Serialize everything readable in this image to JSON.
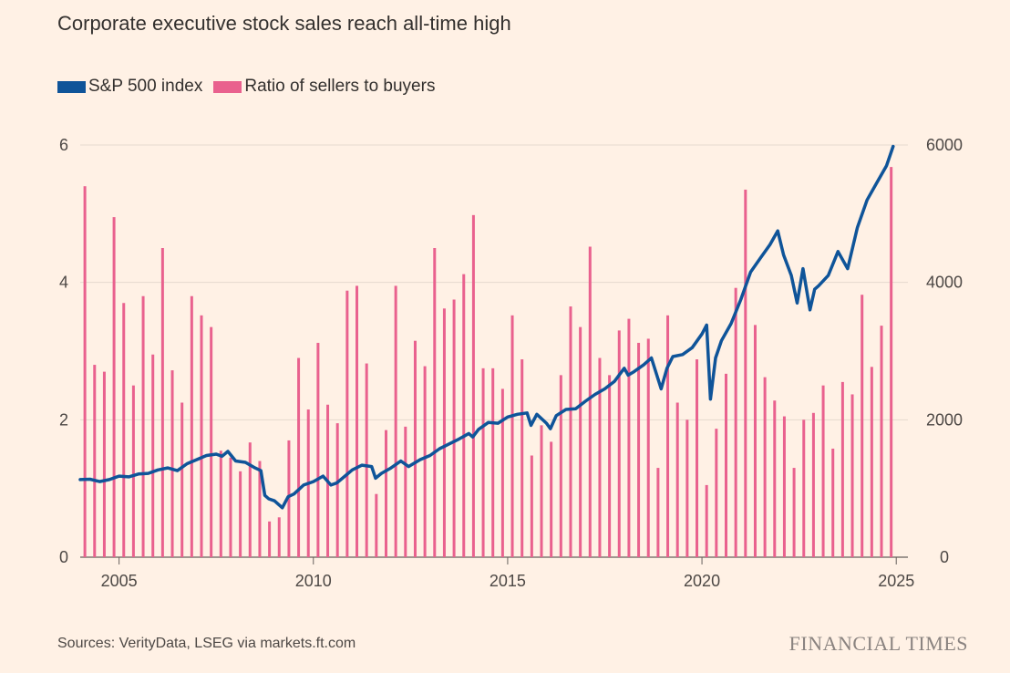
{
  "title": "Corporate executive stock sales reach all-time high",
  "legend": [
    {
      "label": "S&P 500 index",
      "color": "#0F5499"
    },
    {
      "label": "Ratio of sellers to buyers",
      "color": "#E9618E"
    }
  ],
  "source": "Sources: VerityData, LSEG via markets.ft.com",
  "brand": "FINANCIAL TIMES",
  "chart_data": {
    "type": "bar+line",
    "title": "Corporate executive stock sales reach all-time high",
    "x_ticks": [
      "2005",
      "2010",
      "2015",
      "2020",
      "2025"
    ],
    "x_tick_values": [
      2005,
      2010,
      2015,
      2020,
      2025
    ],
    "xlim": [
      2004.0,
      2025.3
    ],
    "y_left": {
      "ticks": [
        "0",
        "2",
        "4",
        "6"
      ],
      "tick_values": [
        0,
        2,
        4,
        6
      ],
      "lim": [
        0,
        6
      ]
    },
    "y_right": {
      "ticks": [
        "0",
        "2000",
        "4000",
        "6000"
      ],
      "tick_values": [
        0,
        2000,
        4000,
        6000
      ],
      "lim": [
        0,
        6000
      ]
    },
    "grid": "horizontal",
    "legend_position": "top-left",
    "series": [
      {
        "name": "Ratio of sellers to buyers",
        "kind": "bar",
        "axis": "left",
        "color": "#E9618E",
        "points": [
          [
            2004.12,
            5.4
          ],
          [
            2004.37,
            2.8
          ],
          [
            2004.62,
            2.7
          ],
          [
            2004.87,
            4.95
          ],
          [
            2005.12,
            3.7
          ],
          [
            2005.37,
            2.5
          ],
          [
            2005.62,
            3.8
          ],
          [
            2005.87,
            2.95
          ],
          [
            2006.12,
            4.5
          ],
          [
            2006.37,
            2.72
          ],
          [
            2006.62,
            2.25
          ],
          [
            2006.87,
            3.8
          ],
          [
            2007.12,
            3.52
          ],
          [
            2007.37,
            3.35
          ],
          [
            2007.62,
            1.55
          ],
          [
            2007.87,
            1.45
          ],
          [
            2008.12,
            1.25
          ],
          [
            2008.37,
            1.67
          ],
          [
            2008.62,
            1.4
          ],
          [
            2008.87,
            0.52
          ],
          [
            2009.12,
            0.58
          ],
          [
            2009.37,
            1.7
          ],
          [
            2009.62,
            2.9
          ],
          [
            2009.87,
            2.15
          ],
          [
            2010.12,
            3.12
          ],
          [
            2010.37,
            2.22
          ],
          [
            2010.62,
            1.95
          ],
          [
            2010.87,
            3.88
          ],
          [
            2011.12,
            3.95
          ],
          [
            2011.37,
            2.82
          ],
          [
            2011.62,
            0.92
          ],
          [
            2011.87,
            1.85
          ],
          [
            2012.12,
            3.95
          ],
          [
            2012.37,
            1.9
          ],
          [
            2012.62,
            3.15
          ],
          [
            2012.87,
            2.78
          ],
          [
            2013.12,
            4.5
          ],
          [
            2013.37,
            3.62
          ],
          [
            2013.62,
            3.75
          ],
          [
            2013.87,
            4.12
          ],
          [
            2014.12,
            4.98
          ],
          [
            2014.37,
            2.75
          ],
          [
            2014.62,
            2.75
          ],
          [
            2014.87,
            2.45
          ],
          [
            2015.12,
            3.52
          ],
          [
            2015.37,
            2.88
          ],
          [
            2015.62,
            1.48
          ],
          [
            2015.87,
            1.92
          ],
          [
            2016.12,
            1.68
          ],
          [
            2016.37,
            2.65
          ],
          [
            2016.62,
            3.65
          ],
          [
            2016.87,
            3.35
          ],
          [
            2017.12,
            4.52
          ],
          [
            2017.37,
            2.9
          ],
          [
            2017.62,
            2.65
          ],
          [
            2017.87,
            3.3
          ],
          [
            2018.12,
            3.47
          ],
          [
            2018.37,
            3.12
          ],
          [
            2018.62,
            3.18
          ],
          [
            2018.87,
            1.3
          ],
          [
            2019.12,
            3.52
          ],
          [
            2019.37,
            2.25
          ],
          [
            2019.62,
            2.0
          ],
          [
            2019.87,
            2.88
          ],
          [
            2020.12,
            1.05
          ],
          [
            2020.37,
            1.87
          ],
          [
            2020.62,
            2.67
          ],
          [
            2020.87,
            3.92
          ],
          [
            2021.12,
            5.35
          ],
          [
            2021.37,
            3.38
          ],
          [
            2021.62,
            2.62
          ],
          [
            2021.87,
            2.28
          ],
          [
            2022.12,
            2.05
          ],
          [
            2022.37,
            1.3
          ],
          [
            2022.62,
            2.0
          ],
          [
            2022.87,
            2.1
          ],
          [
            2023.12,
            2.5
          ],
          [
            2023.37,
            1.58
          ],
          [
            2023.62,
            2.55
          ],
          [
            2023.87,
            2.37
          ],
          [
            2024.12,
            3.82
          ],
          [
            2024.37,
            2.77
          ],
          [
            2024.62,
            3.37
          ],
          [
            2024.87,
            5.68
          ]
        ]
      },
      {
        "name": "S&P 500 index",
        "kind": "line",
        "axis": "right",
        "color": "#0F5499",
        "points": [
          [
            2004.0,
            1130
          ],
          [
            2004.25,
            1135
          ],
          [
            2004.5,
            1100
          ],
          [
            2004.75,
            1130
          ],
          [
            2005.0,
            1180
          ],
          [
            2005.25,
            1170
          ],
          [
            2005.5,
            1210
          ],
          [
            2005.75,
            1220
          ],
          [
            2006.0,
            1270
          ],
          [
            2006.25,
            1300
          ],
          [
            2006.5,
            1260
          ],
          [
            2006.75,
            1360
          ],
          [
            2007.0,
            1420
          ],
          [
            2007.25,
            1480
          ],
          [
            2007.5,
            1500
          ],
          [
            2007.65,
            1470
          ],
          [
            2007.8,
            1540
          ],
          [
            2008.0,
            1400
          ],
          [
            2008.25,
            1380
          ],
          [
            2008.5,
            1300
          ],
          [
            2008.65,
            1260
          ],
          [
            2008.75,
            900
          ],
          [
            2008.85,
            850
          ],
          [
            2009.0,
            820
          ],
          [
            2009.2,
            720
          ],
          [
            2009.35,
            880
          ],
          [
            2009.5,
            920
          ],
          [
            2009.75,
            1050
          ],
          [
            2010.0,
            1100
          ],
          [
            2010.25,
            1180
          ],
          [
            2010.45,
            1050
          ],
          [
            2010.6,
            1080
          ],
          [
            2010.75,
            1150
          ],
          [
            2011.0,
            1270
          ],
          [
            2011.25,
            1340
          ],
          [
            2011.5,
            1320
          ],
          [
            2011.6,
            1150
          ],
          [
            2011.75,
            1220
          ],
          [
            2012.0,
            1300
          ],
          [
            2012.25,
            1400
          ],
          [
            2012.45,
            1320
          ],
          [
            2012.75,
            1420
          ],
          [
            2013.0,
            1480
          ],
          [
            2013.25,
            1580
          ],
          [
            2013.5,
            1650
          ],
          [
            2013.75,
            1720
          ],
          [
            2014.0,
            1800
          ],
          [
            2014.1,
            1750
          ],
          [
            2014.25,
            1860
          ],
          [
            2014.5,
            1960
          ],
          [
            2014.75,
            1950
          ],
          [
            2015.0,
            2040
          ],
          [
            2015.25,
            2080
          ],
          [
            2015.5,
            2100
          ],
          [
            2015.6,
            1920
          ],
          [
            2015.75,
            2080
          ],
          [
            2016.0,
            1950
          ],
          [
            2016.1,
            1870
          ],
          [
            2016.25,
            2060
          ],
          [
            2016.5,
            2150
          ],
          [
            2016.75,
            2160
          ],
          [
            2017.0,
            2270
          ],
          [
            2017.25,
            2370
          ],
          [
            2017.5,
            2450
          ],
          [
            2017.75,
            2560
          ],
          [
            2018.0,
            2750
          ],
          [
            2018.1,
            2650
          ],
          [
            2018.25,
            2700
          ],
          [
            2018.5,
            2800
          ],
          [
            2018.7,
            2900
          ],
          [
            2018.95,
            2450
          ],
          [
            2019.1,
            2750
          ],
          [
            2019.25,
            2920
          ],
          [
            2019.5,
            2950
          ],
          [
            2019.75,
            3050
          ],
          [
            2020.0,
            3250
          ],
          [
            2020.12,
            3380
          ],
          [
            2020.22,
            2300
          ],
          [
            2020.35,
            2900
          ],
          [
            2020.5,
            3150
          ],
          [
            2020.75,
            3400
          ],
          [
            2021.0,
            3750
          ],
          [
            2021.25,
            4150
          ],
          [
            2021.5,
            4350
          ],
          [
            2021.75,
            4550
          ],
          [
            2021.95,
            4750
          ],
          [
            2022.1,
            4400
          ],
          [
            2022.3,
            4100
          ],
          [
            2022.45,
            3700
          ],
          [
            2022.6,
            4200
          ],
          [
            2022.78,
            3600
          ],
          [
            2022.9,
            3900
          ],
          [
            2023.0,
            3950
          ],
          [
            2023.25,
            4100
          ],
          [
            2023.5,
            4450
          ],
          [
            2023.75,
            4200
          ],
          [
            2024.0,
            4800
          ],
          [
            2024.25,
            5200
          ],
          [
            2024.5,
            5450
          ],
          [
            2024.75,
            5700
          ],
          [
            2024.92,
            5980
          ]
        ]
      }
    ]
  }
}
